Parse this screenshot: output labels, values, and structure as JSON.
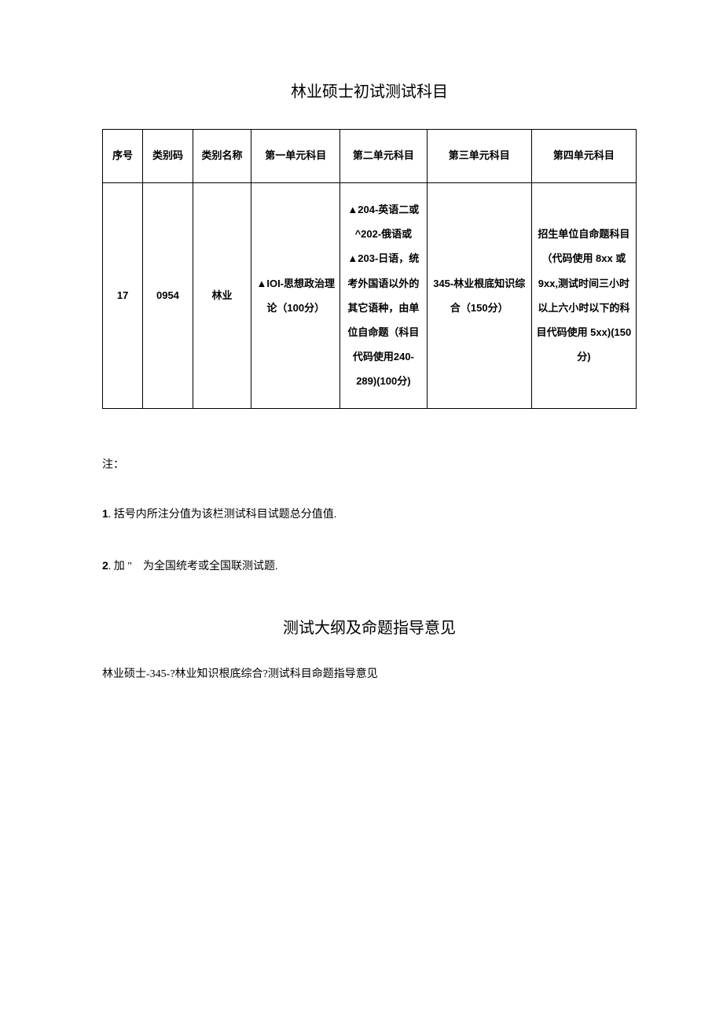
{
  "title": "林业硕士初试测试科目",
  "table": {
    "columns": [
      "序号",
      "类别码",
      "类别名称",
      "第一单元科目",
      "第二单元科目",
      "第三单元科目",
      "第四单元科目"
    ],
    "rows": [
      {
        "seq": "17",
        "code": "0954",
        "name": "林业",
        "unit1": "▲IOI-思想政治理论（100分）",
        "unit2": "▲204-英语二或 ^202-俄语或▲203-日语，统考外国语以外的其它语种，由单位自命题（科目代码使用240-289)(100分)",
        "unit3": "345-林业根底知识综合（150分）",
        "unit4": "招生单位自命题科目（代码使用 8xx 或 9xx,测试时间三小时以上六小时以下的科目代码使用 5xx)(150分)"
      }
    ],
    "border_color": "#000000",
    "background_color": "#ffffff"
  },
  "notes": {
    "label": "注：",
    "items": [
      {
        "num": "1",
        "text": ". 括号内所注分值为该栏测试科目试题总分值值."
      },
      {
        "num": "2",
        "text": ". 加 \"　为全国统考或全国联测试题."
      }
    ]
  },
  "subtitle": "测试大纲及命题指导意见",
  "subtitle_desc": "林业硕士-345-?林业知识根底综合?测试科目命题指导意见"
}
